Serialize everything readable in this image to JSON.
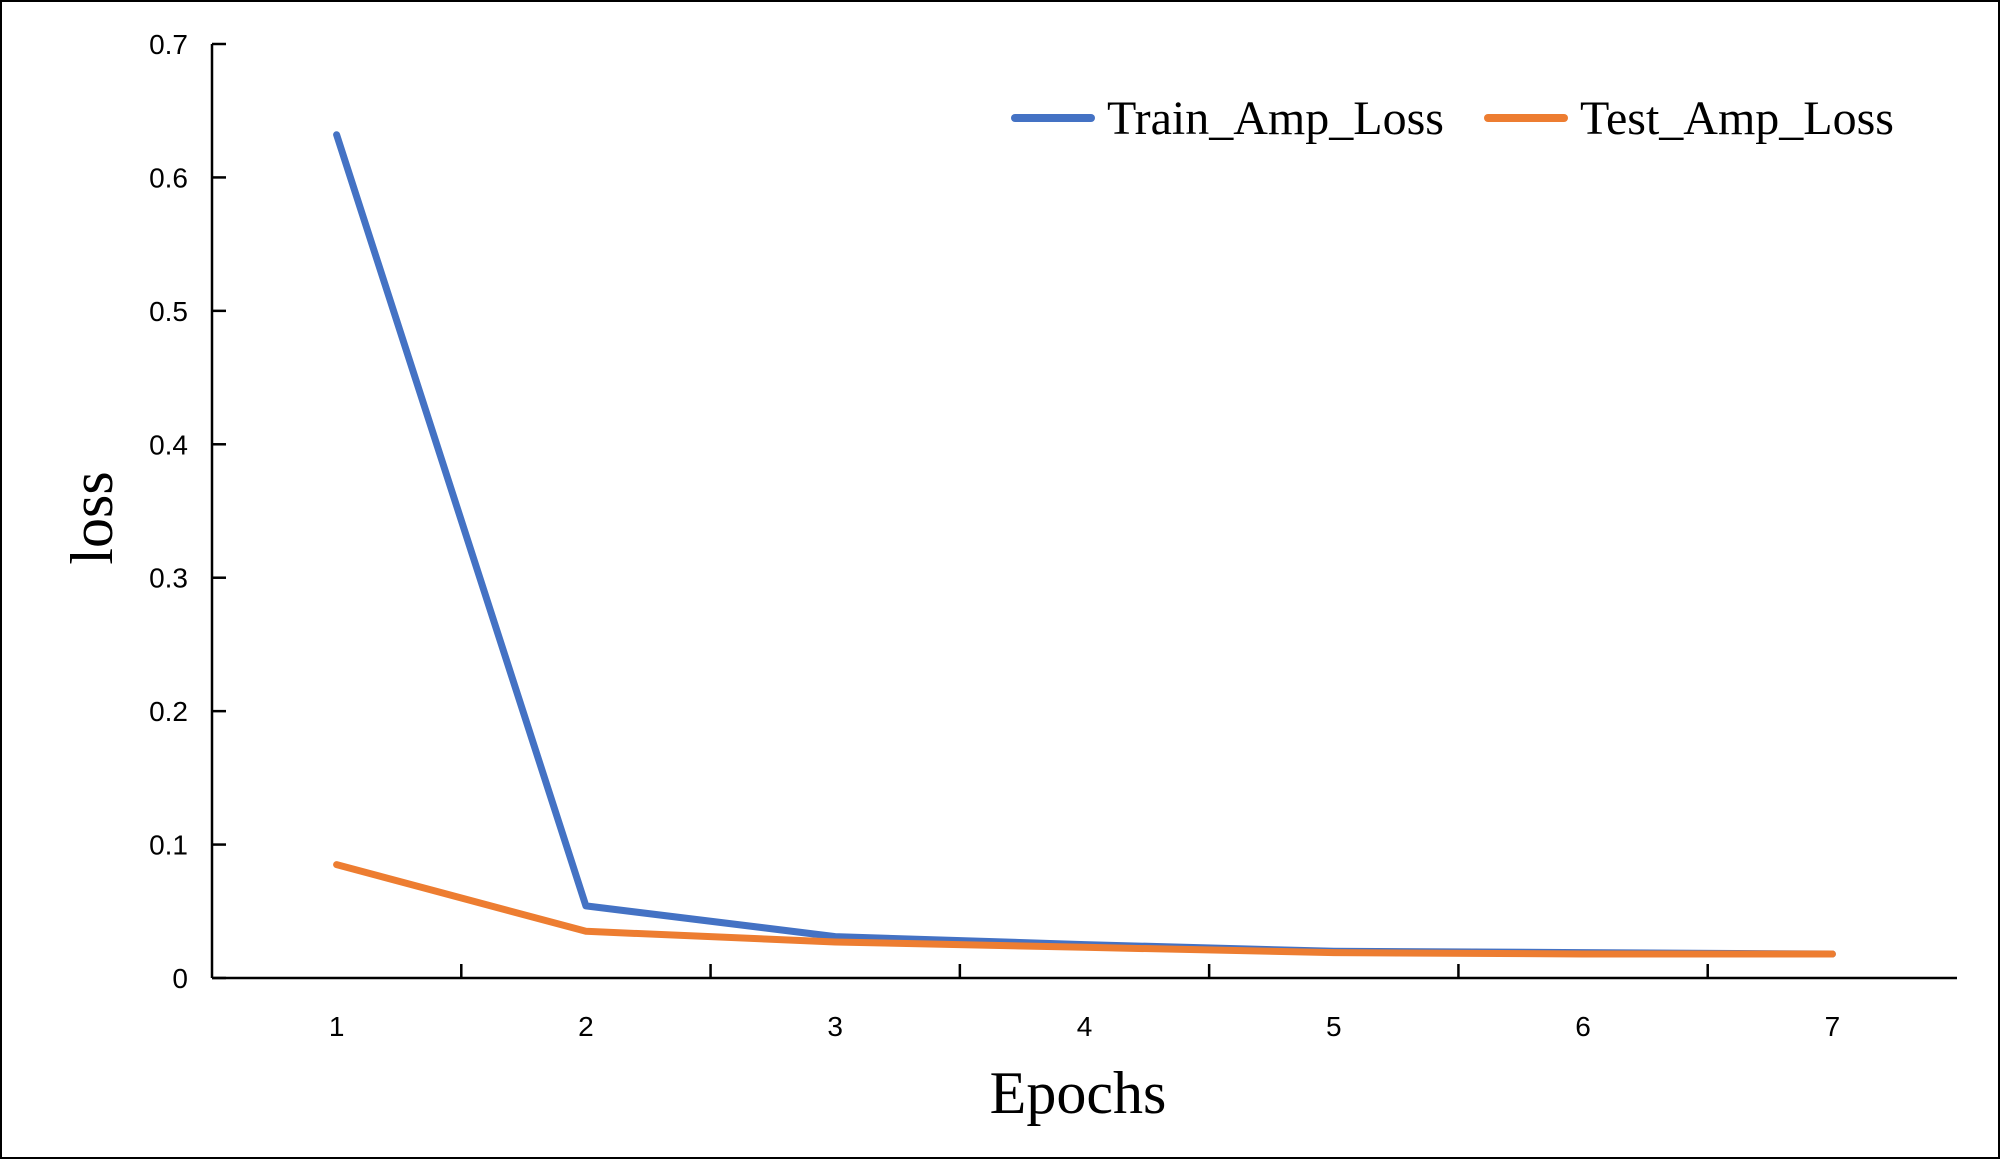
{
  "chart_data": {
    "type": "line",
    "title": "",
    "xlabel": "Epochs",
    "ylabel": "loss",
    "x": [
      1,
      2,
      3,
      4,
      5,
      6,
      7
    ],
    "x_tick_labels": [
      "1",
      "2",
      "3",
      "4",
      "5",
      "6",
      "7"
    ],
    "y_tick_labels": [
      "0",
      "0.1",
      "0.2",
      "0.3",
      "0.4",
      "0.5",
      "0.6",
      "0.7"
    ],
    "y_ticks": [
      0,
      0.1,
      0.2,
      0.3,
      0.4,
      0.5,
      0.6,
      0.7
    ],
    "ylim": [
      0,
      0.7
    ],
    "xlim": [
      0.5,
      7.5
    ],
    "grid": false,
    "legend_position": "top-right",
    "series": [
      {
        "name": "Train_Amp_Loss",
        "color": "#4472C4",
        "values": [
          0.632,
          0.054,
          0.031,
          0.025,
          0.02,
          0.019,
          0.018
        ]
      },
      {
        "name": "Test_Amp_Loss",
        "color": "#ED7D31",
        "values": [
          0.085,
          0.035,
          0.027,
          0.023,
          0.019,
          0.018,
          0.018
        ]
      }
    ]
  }
}
